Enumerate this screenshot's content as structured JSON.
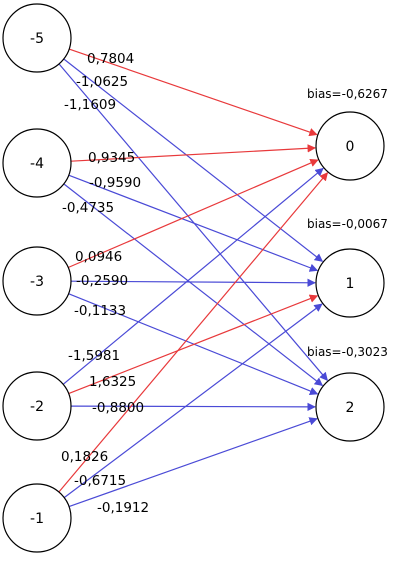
{
  "colors": {
    "positive": "#e8393b",
    "negative": "#4a4ad6"
  },
  "inputs": [
    {
      "id": "-5",
      "label": "-5"
    },
    {
      "id": "-4",
      "label": "-4"
    },
    {
      "id": "-3",
      "label": "-3"
    },
    {
      "id": "-2",
      "label": "-2"
    },
    {
      "id": "-1",
      "label": "-1"
    }
  ],
  "outputs": [
    {
      "id": "0",
      "label": "0",
      "bias": "bias=-0,6267"
    },
    {
      "id": "1",
      "label": "1",
      "bias": "bias=-0,0067"
    },
    {
      "id": "2",
      "label": "2",
      "bias": "bias=-0,3023"
    }
  ],
  "edges": [
    {
      "from": "-5",
      "to": "0",
      "weight": "0,7804",
      "sign": "positive"
    },
    {
      "from": "-5",
      "to": "1",
      "weight": "-1,0625",
      "sign": "negative"
    },
    {
      "from": "-5",
      "to": "2",
      "weight": "-1,1609",
      "sign": "negative"
    },
    {
      "from": "-4",
      "to": "0",
      "weight": "0,9345",
      "sign": "positive"
    },
    {
      "from": "-4",
      "to": "1",
      "weight": "-0,9590",
      "sign": "negative"
    },
    {
      "from": "-4",
      "to": "2",
      "weight": "-0,4735",
      "sign": "negative"
    },
    {
      "from": "-3",
      "to": "0",
      "weight": "0,0946",
      "sign": "positive"
    },
    {
      "from": "-3",
      "to": "1",
      "weight": "-0,2590",
      "sign": "negative"
    },
    {
      "from": "-3",
      "to": "2",
      "weight": "-0,1133",
      "sign": "negative"
    },
    {
      "from": "-2",
      "to": "0",
      "weight": "-1,5981",
      "sign": "negative"
    },
    {
      "from": "-2",
      "to": "1",
      "weight": "1,6325",
      "sign": "positive"
    },
    {
      "from": "-2",
      "to": "2",
      "weight": "-0,8800",
      "sign": "negative"
    },
    {
      "from": "-1",
      "to": "0",
      "weight": "0,1826",
      "sign": "positive"
    },
    {
      "from": "-1",
      "to": "1",
      "weight": "-0,6715",
      "sign": "negative"
    },
    {
      "from": "-1",
      "to": "2",
      "weight": "-0,1912",
      "sign": "negative"
    }
  ]
}
